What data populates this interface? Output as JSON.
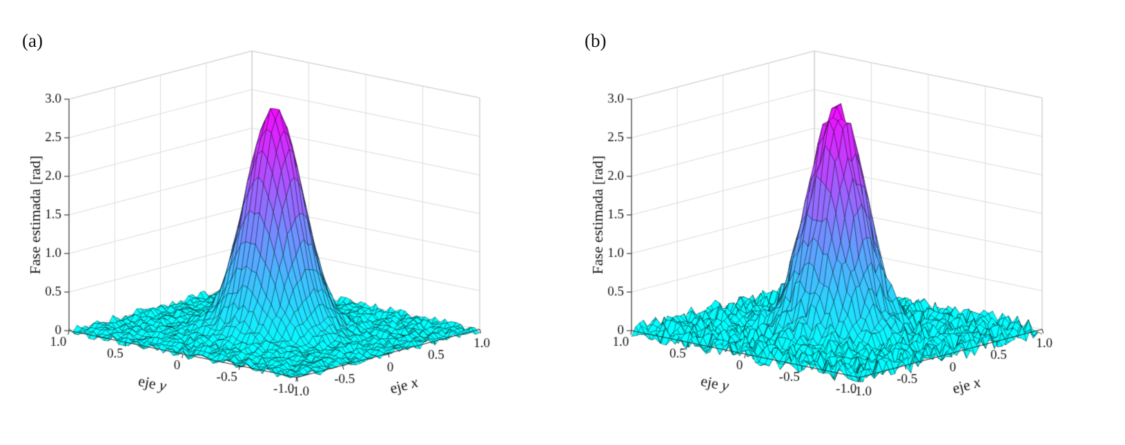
{
  "figure": {
    "background": "#ffffff"
  },
  "chart_data": [
    {
      "type": "surface",
      "panel_label": "(a)",
      "xlabel": "eje x",
      "ylabel": "eje y",
      "zlabel": "Fase estimada [rad]",
      "x_range": [
        -1,
        1
      ],
      "y_range": [
        -1,
        1
      ],
      "z_range": [
        0,
        3
      ],
      "x_tick_values": [
        -1,
        -0.5,
        0,
        0.5,
        1
      ],
      "x_tick_labels": [
        "-1.0",
        "-0.5",
        "0",
        "0.5",
        "1.0"
      ],
      "y_tick_values": [
        1,
        0.5,
        0,
        -0.5,
        -1
      ],
      "y_tick_labels": [
        "1.0",
        "0.5",
        "0",
        "-0.5",
        "-1.0"
      ],
      "z_tick_values": [
        0,
        0.5,
        1,
        1.5,
        2,
        2.5,
        3
      ],
      "z_tick_labels": [
        "0",
        "0.5",
        "1.0",
        "1.5",
        "2.0",
        "2.5",
        "3.0"
      ],
      "surface_model": {
        "function": "z(x,y) = A*exp(-(x^2+y^2)/(2*sigma^2)) + uniform_noise",
        "amplitude_rad": 2.9,
        "sigma": 0.2,
        "noise_amplitude_rad": 0.055,
        "grid_points": 47
      },
      "colormap": {
        "name": "cool",
        "low": "#00ffff",
        "high": "#ff00ff"
      },
      "noise_seed": 11
    },
    {
      "type": "surface",
      "panel_label": "(b)",
      "xlabel": "eje x",
      "ylabel": "eje y",
      "zlabel": "Fase estimada [rad]",
      "x_range": [
        -1,
        1
      ],
      "y_range": [
        -1,
        1
      ],
      "z_range": [
        0,
        3
      ],
      "x_tick_values": [
        -1,
        -0.5,
        0,
        0.5,
        1
      ],
      "x_tick_labels": [
        "-1.0",
        "-0.5",
        "0",
        "0.5",
        "1.0"
      ],
      "y_tick_values": [
        1,
        0.5,
        0,
        -0.5,
        -1
      ],
      "y_tick_labels": [
        "1.0",
        "0.5",
        "0",
        "-0.5",
        "-1.0"
      ],
      "z_tick_values": [
        0,
        0.5,
        1,
        1.5,
        2,
        2.5,
        3
      ],
      "z_tick_labels": [
        "0",
        "0.5",
        "1.0",
        "1.5",
        "2.0",
        "2.5",
        "3.0"
      ],
      "surface_model": {
        "function": "z(x,y) = A*exp(-(x^2+y^2)/(2*sigma^2)) + uniform_noise",
        "amplitude_rad": 2.9,
        "sigma": 0.2,
        "noise_amplitude_rad": 0.12,
        "grid_points": 47
      },
      "colormap": {
        "name": "cool",
        "low": "#00ffff",
        "high": "#ff00ff"
      },
      "noise_seed": 97
    }
  ]
}
